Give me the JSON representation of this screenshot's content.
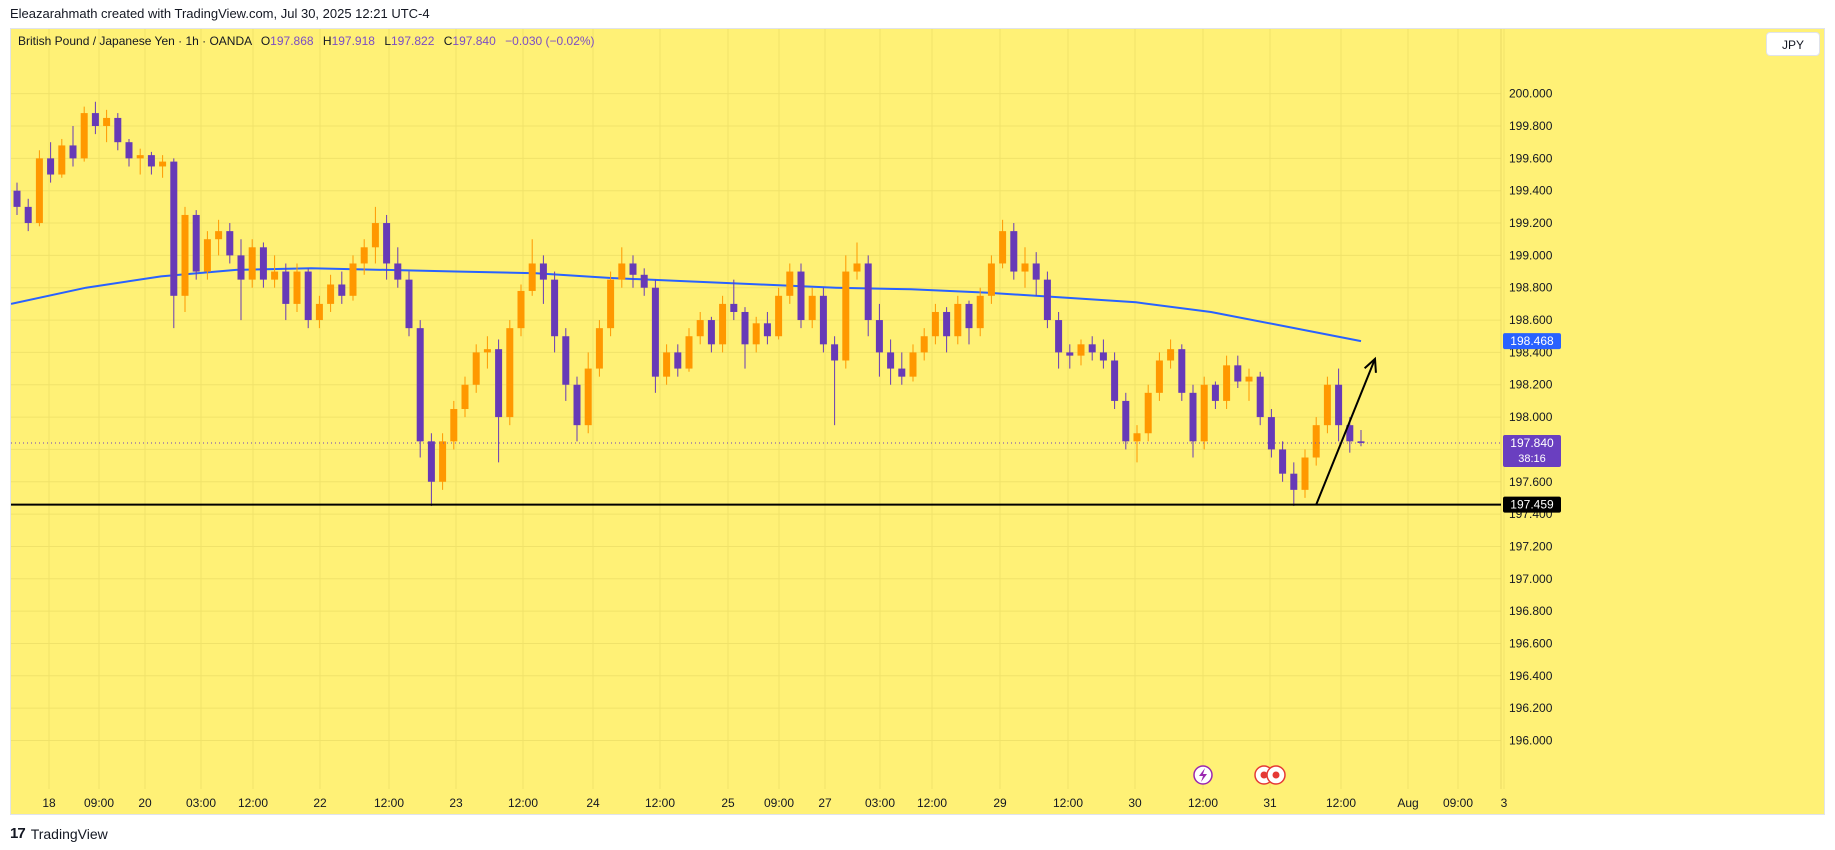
{
  "header": {
    "attribution": "Eleazarahmath created with TradingView.com, Jul 30, 2025 12:21 UTC-4"
  },
  "legend": {
    "symbol": "British Pound / Japanese Yen · 1h · OANDA",
    "o_label": "O",
    "o_value": "197.868",
    "h_label": "H",
    "h_value": "197.918",
    "l_label": "L",
    "l_value": "197.822",
    "c_label": "C",
    "c_value": "197.840",
    "change": "−0.030 (−0.02%)"
  },
  "currency_button": "JPY",
  "footer": {
    "brand": "TradingView",
    "brand_mark": "17"
  },
  "colors": {
    "background": "#fff176",
    "up": "#ff9800",
    "down": "#673ab7",
    "ma": "#2962ff",
    "support": "#000000",
    "ma_badge": "#2962ff",
    "price_badge": "#6a3fc0"
  },
  "chart_data": {
    "type": "candlestick",
    "x_tick_labels": [
      "18",
      "09:00",
      "20",
      "03:00",
      "12:00",
      "22",
      "12:00",
      "23",
      "12:00",
      "24",
      "12:00",
      "25",
      "09:00",
      "27",
      "03:00",
      "12:00",
      "29",
      "12:00",
      "30",
      "12:00",
      "31",
      "12:00",
      "Aug",
      "09:00",
      "3"
    ],
    "y_ticks": [
      196.0,
      196.2,
      196.4,
      196.6,
      196.8,
      197.0,
      197.2,
      197.4,
      197.6,
      197.8,
      198.0,
      198.2,
      198.4,
      198.6,
      198.8,
      199.0,
      199.2,
      199.4,
      199.6,
      199.8,
      200.0
    ],
    "y_tick_labels": [
      "196.000",
      "196.200",
      "196.400",
      "196.600",
      "196.800",
      "197.000",
      "197.200",
      "197.400",
      "197.600",
      "197.800",
      "198.000",
      "198.200",
      "198.400",
      "198.600",
      "198.800",
      "199.000",
      "199.200",
      "199.400",
      "199.600",
      "199.800",
      "200.000"
    ],
    "ylim": [
      195.7,
      200.4
    ],
    "candles": [
      [
        199.4,
        199.45,
        199.25,
        199.3
      ],
      [
        199.3,
        199.35,
        199.15,
        199.2
      ],
      [
        199.2,
        199.65,
        199.18,
        199.6
      ],
      [
        199.6,
        199.7,
        199.45,
        199.5
      ],
      [
        199.5,
        199.72,
        199.48,
        199.68
      ],
      [
        199.68,
        199.8,
        199.55,
        199.6
      ],
      [
        199.6,
        199.92,
        199.58,
        199.88
      ],
      [
        199.88,
        199.95,
        199.75,
        199.8
      ],
      [
        199.8,
        199.9,
        199.7,
        199.85
      ],
      [
        199.85,
        199.88,
        199.65,
        199.7
      ],
      [
        199.7,
        199.72,
        199.55,
        199.6
      ],
      [
        199.6,
        199.66,
        199.5,
        199.62
      ],
      [
        199.62,
        199.64,
        199.5,
        199.55
      ],
      [
        199.55,
        199.62,
        199.48,
        199.58
      ],
      [
        199.58,
        199.6,
        198.55,
        198.75
      ],
      [
        198.75,
        199.3,
        198.65,
        199.25
      ],
      [
        199.25,
        199.28,
        198.85,
        198.9
      ],
      [
        198.9,
        199.15,
        198.85,
        199.1
      ],
      [
        199.1,
        199.22,
        199.0,
        199.15
      ],
      [
        199.15,
        199.2,
        198.95,
        199.0
      ],
      [
        199.0,
        199.1,
        198.6,
        198.85
      ],
      [
        198.85,
        199.1,
        198.8,
        199.05
      ],
      [
        199.05,
        199.08,
        198.8,
        198.85
      ],
      [
        198.85,
        199.0,
        198.8,
        198.9
      ],
      [
        198.9,
        198.95,
        198.6,
        198.7
      ],
      [
        198.7,
        198.95,
        198.65,
        198.9
      ],
      [
        198.9,
        198.92,
        198.55,
        198.6
      ],
      [
        198.6,
        198.75,
        198.55,
        198.7
      ],
      [
        198.7,
        198.88,
        198.65,
        198.82
      ],
      [
        198.82,
        198.9,
        198.7,
        198.75
      ],
      [
        198.75,
        199.0,
        198.72,
        198.95
      ],
      [
        198.95,
        199.1,
        198.88,
        199.05
      ],
      [
        199.05,
        199.3,
        198.95,
        199.2
      ],
      [
        199.2,
        199.25,
        198.85,
        198.95
      ],
      [
        198.95,
        199.05,
        198.8,
        198.85
      ],
      [
        198.85,
        198.9,
        198.5,
        198.55
      ],
      [
        198.55,
        198.6,
        197.75,
        197.85
      ],
      [
        197.85,
        197.9,
        197.45,
        197.6
      ],
      [
        197.6,
        197.9,
        197.55,
        197.85
      ],
      [
        197.85,
        198.1,
        197.8,
        198.05
      ],
      [
        198.05,
        198.25,
        198.0,
        198.2
      ],
      [
        198.2,
        198.45,
        198.15,
        198.4
      ],
      [
        198.4,
        198.5,
        198.3,
        198.42
      ],
      [
        198.42,
        198.48,
        197.72,
        198.0
      ],
      [
        198.0,
        198.6,
        197.95,
        198.55
      ],
      [
        198.55,
        198.82,
        198.5,
        198.78
      ],
      [
        198.78,
        199.1,
        198.75,
        198.95
      ],
      [
        198.95,
        199.0,
        198.7,
        198.85
      ],
      [
        198.85,
        198.9,
        198.4,
        198.5
      ],
      [
        198.5,
        198.55,
        198.1,
        198.2
      ],
      [
        198.2,
        198.25,
        197.85,
        197.95
      ],
      [
        197.95,
        198.4,
        197.9,
        198.3
      ],
      [
        198.3,
        198.6,
        198.25,
        198.55
      ],
      [
        198.55,
        198.9,
        198.5,
        198.85
      ],
      [
        198.85,
        199.05,
        198.8,
        198.95
      ],
      [
        198.95,
        199.0,
        198.8,
        198.88
      ],
      [
        198.88,
        198.92,
        198.75,
        198.8
      ],
      [
        198.8,
        198.85,
        198.15,
        198.25
      ],
      [
        198.25,
        198.45,
        198.2,
        198.4
      ],
      [
        198.4,
        198.45,
        198.25,
        198.3
      ],
      [
        198.3,
        198.55,
        198.28,
        198.5
      ],
      [
        198.5,
        198.65,
        198.45,
        198.6
      ],
      [
        198.6,
        198.62,
        198.4,
        198.45
      ],
      [
        198.45,
        198.75,
        198.4,
        198.7
      ],
      [
        198.7,
        198.85,
        198.6,
        198.65
      ],
      [
        198.65,
        198.68,
        198.3,
        198.45
      ],
      [
        198.45,
        198.62,
        198.4,
        198.58
      ],
      [
        198.58,
        198.65,
        198.45,
        198.5
      ],
      [
        198.5,
        198.8,
        198.48,
        198.75
      ],
      [
        198.75,
        198.95,
        198.7,
        198.9
      ],
      [
        198.9,
        198.95,
        198.55,
        198.6
      ],
      [
        198.6,
        198.8,
        198.55,
        198.75
      ],
      [
        198.75,
        198.8,
        198.4,
        198.45
      ],
      [
        198.45,
        198.5,
        197.95,
        198.35
      ],
      [
        198.35,
        199.0,
        198.3,
        198.9
      ],
      [
        198.9,
        199.08,
        198.85,
        198.95
      ],
      [
        198.95,
        199.0,
        198.5,
        198.6
      ],
      [
        198.6,
        198.7,
        198.25,
        198.4
      ],
      [
        198.4,
        198.48,
        198.2,
        198.3
      ],
      [
        198.3,
        198.4,
        198.2,
        198.25
      ],
      [
        198.25,
        198.45,
        198.22,
        198.4
      ],
      [
        198.4,
        198.55,
        198.35,
        198.5
      ],
      [
        198.5,
        198.7,
        198.45,
        198.65
      ],
      [
        198.65,
        198.68,
        198.4,
        198.5
      ],
      [
        198.5,
        198.75,
        198.45,
        198.7
      ],
      [
        198.7,
        198.72,
        198.45,
        198.55
      ],
      [
        198.55,
        198.8,
        198.5,
        198.75
      ],
      [
        198.75,
        199.0,
        198.7,
        198.95
      ],
      [
        198.95,
        199.22,
        198.92,
        199.15
      ],
      [
        199.15,
        199.2,
        198.85,
        198.9
      ],
      [
        198.9,
        199.05,
        198.8,
        198.95
      ],
      [
        198.95,
        199.02,
        198.75,
        198.85
      ],
      [
        198.85,
        198.9,
        198.55,
        198.6
      ],
      [
        198.6,
        198.65,
        198.3,
        198.4
      ],
      [
        198.4,
        198.45,
        198.3,
        198.38
      ],
      [
        198.38,
        198.48,
        198.32,
        198.45
      ],
      [
        198.45,
        198.5,
        198.35,
        198.4
      ],
      [
        198.4,
        198.48,
        198.3,
        198.35
      ],
      [
        198.35,
        198.4,
        198.05,
        198.1
      ],
      [
        198.1,
        198.15,
        197.8,
        197.85
      ],
      [
        197.85,
        197.95,
        197.72,
        197.9
      ],
      [
        197.9,
        198.2,
        197.85,
        198.15
      ],
      [
        198.15,
        198.4,
        198.1,
        198.35
      ],
      [
        198.35,
        198.48,
        198.3,
        198.42
      ],
      [
        198.42,
        198.45,
        198.1,
        198.15
      ],
      [
        198.15,
        198.2,
        197.75,
        197.85
      ],
      [
        197.85,
        198.25,
        197.8,
        198.2
      ],
      [
        198.2,
        198.22,
        198.05,
        198.1
      ],
      [
        198.1,
        198.38,
        198.05,
        198.32
      ],
      [
        198.32,
        198.38,
        198.18,
        198.22
      ],
      [
        198.22,
        198.3,
        198.1,
        198.25
      ],
      [
        198.25,
        198.28,
        197.95,
        198.0
      ],
      [
        198.0,
        198.05,
        197.75,
        197.8
      ],
      [
        197.8,
        197.85,
        197.6,
        197.65
      ],
      [
        197.65,
        197.72,
        197.45,
        197.55
      ],
      [
        197.55,
        197.8,
        197.5,
        197.75
      ],
      [
        197.75,
        198.0,
        197.7,
        197.95
      ],
      [
        197.95,
        198.25,
        197.9,
        198.2
      ],
      [
        198.2,
        198.3,
        197.85,
        197.95
      ],
      [
        197.95,
        198.0,
        197.78,
        197.85
      ],
      [
        197.85,
        197.92,
        197.82,
        197.84
      ]
    ],
    "moving_average": {
      "name": "",
      "values": [
        198.7,
        198.8,
        198.87,
        198.91,
        198.92,
        198.91,
        198.9,
        198.89,
        198.86,
        198.84,
        198.82,
        198.8,
        198.79,
        198.77,
        198.74,
        198.71,
        198.65,
        198.56,
        198.47
      ]
    },
    "current_price": 197.84,
    "current_price_label": "197.840",
    "countdown": "38:16",
    "ma_price_label": "198.468",
    "support_level": 197.459,
    "support_label": "197.459",
    "arrow_annotation": {
      "from": [
        116,
        197.459
      ],
      "to": [
        120,
        198.36
      ]
    }
  }
}
